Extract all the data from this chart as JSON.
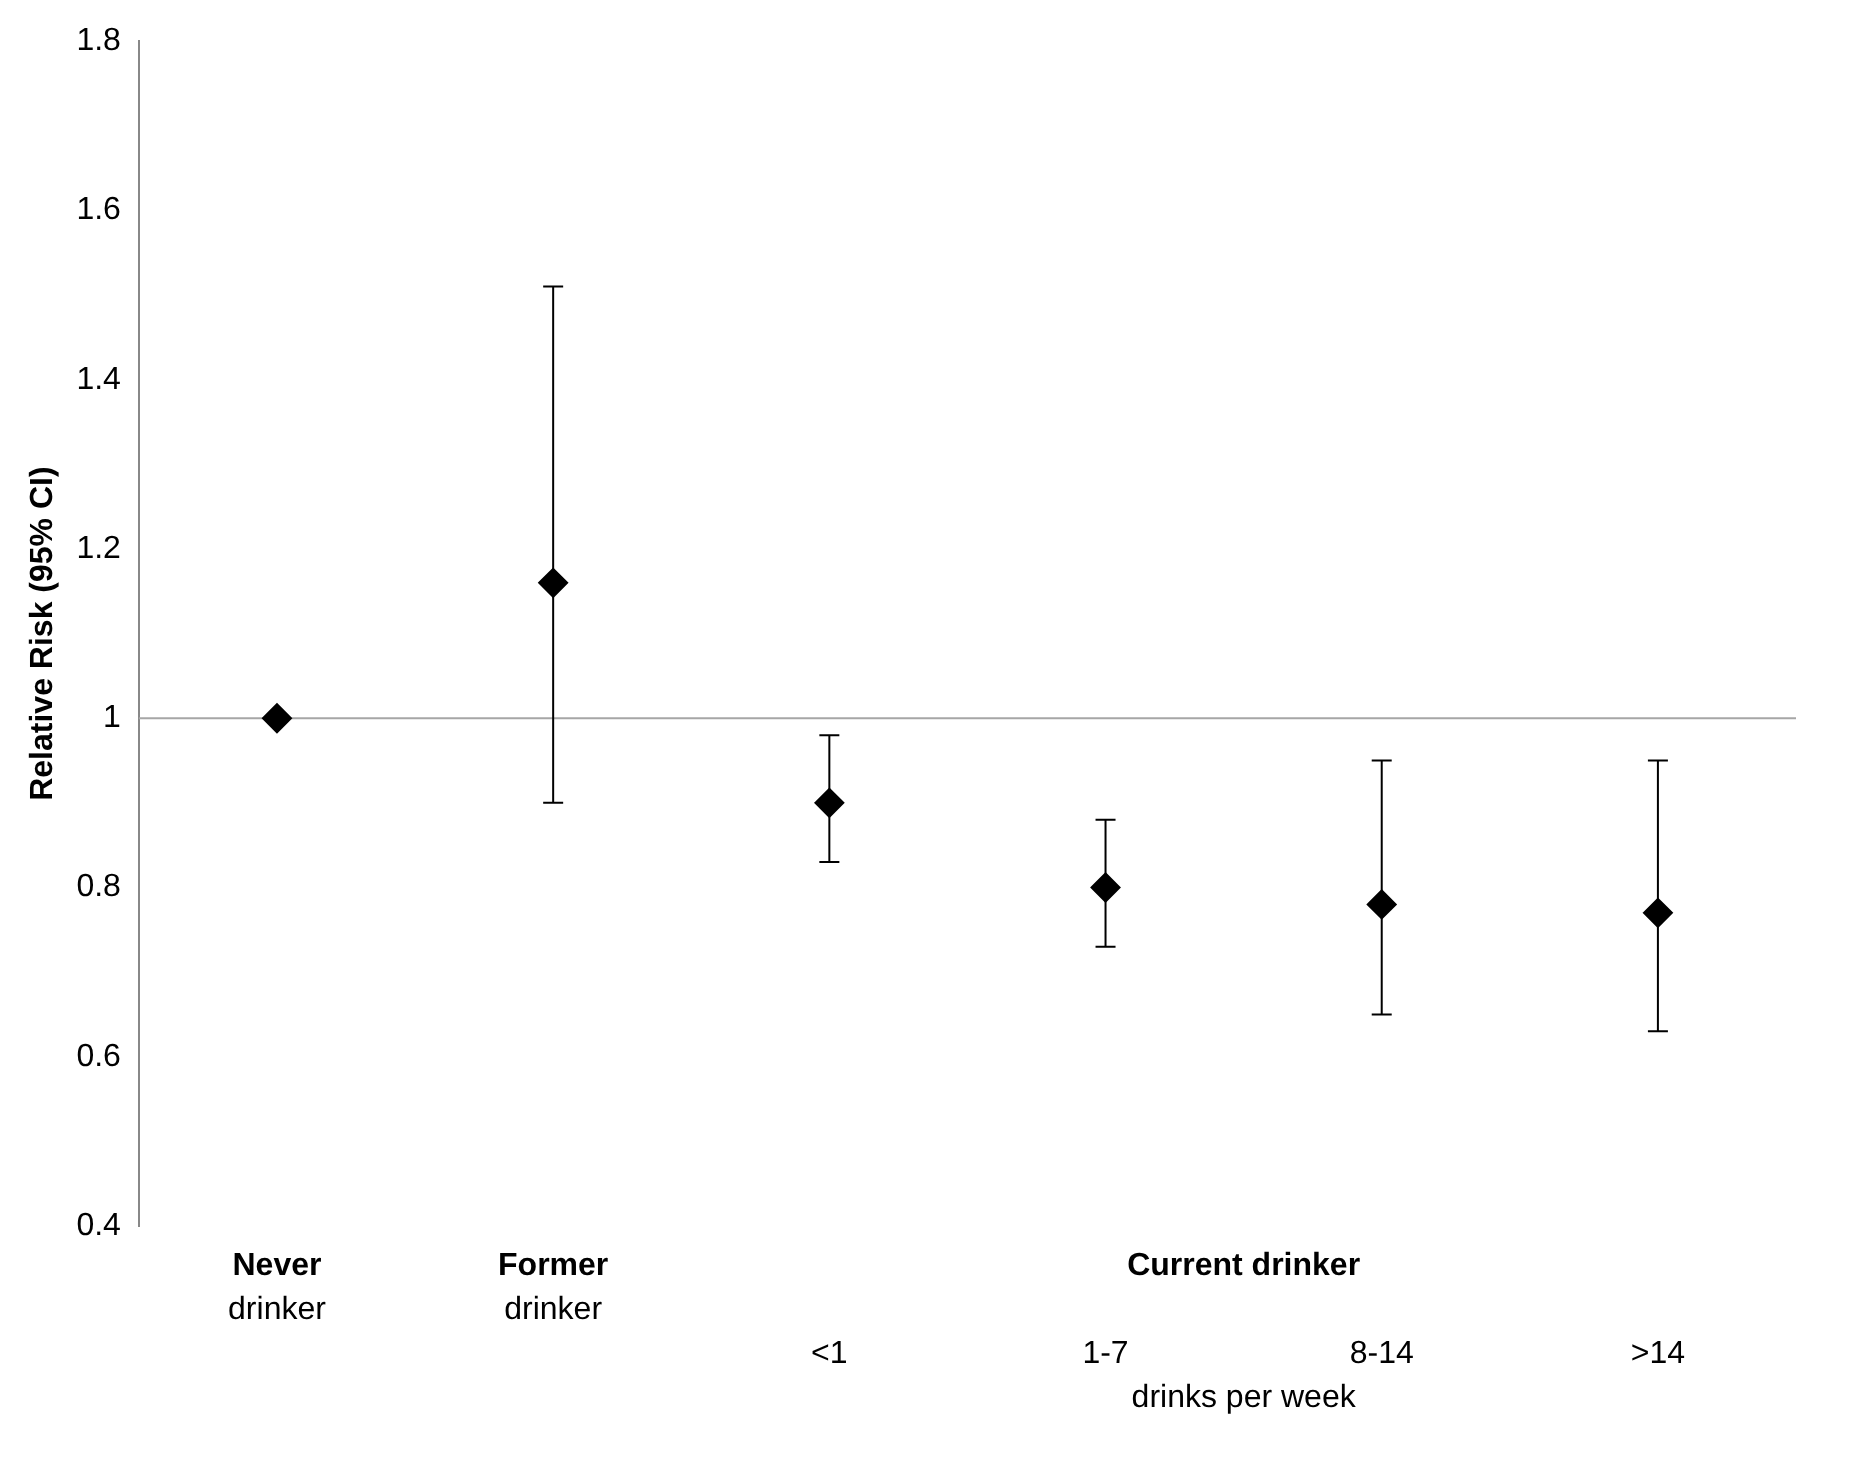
{
  "chart_data": {
    "type": "scatter",
    "ylabel": "Relative Risk (95% CI)",
    "categories": [
      "Never drinker",
      "Former drinker",
      "<1",
      "1-7",
      "8-14",
      ">14"
    ],
    "series": [
      {
        "color": "#000000",
        "values": [
          1.0,
          1.16,
          0.9,
          0.8,
          0.78,
          0.77
        ],
        "errors": [
          null,
          [
            0.9,
            1.51
          ],
          [
            0.83,
            0.98
          ],
          [
            0.73,
            0.88
          ],
          [
            0.65,
            0.95
          ],
          [
            0.63,
            0.95
          ]
        ]
      }
    ],
    "ylim": [
      0.4,
      1.8
    ],
    "yticks": [
      0.4,
      0.6,
      0.8,
      1,
      1.2,
      1.4,
      1.6,
      1.8
    ],
    "ref_lines": [
      {
        "axis": "y",
        "value": 1,
        "color": "#a6a6a6"
      }
    ],
    "annotations": [
      "Current drinker",
      "drinks per week"
    ],
    "marker": "diamond",
    "grid": false,
    "legend": false
  }
}
